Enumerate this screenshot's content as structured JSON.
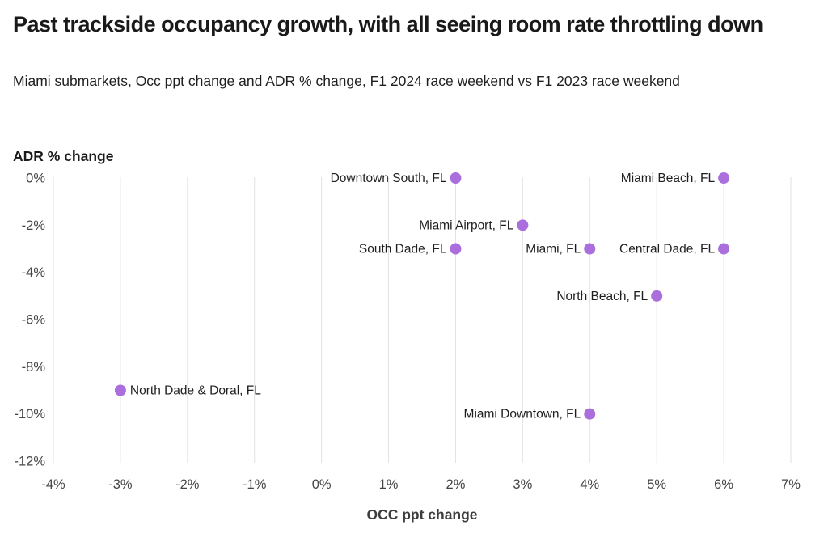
{
  "header": {
    "title": "Past trackside occupancy growth, with all seeing room rate throttling down",
    "subtitle": "Miami submarkets, Occ ppt change and ADR % change, F1 2024 race weekend vs F1 2023 race weekend"
  },
  "chart_data": {
    "type": "scatter",
    "title": "Past trackside occupancy growth, with all seeing room rate throttling down",
    "subtitle": "Miami submarkets, Occ ppt change and ADR % change, F1 2024 race weekend vs F1 2023 race weekend",
    "xlabel": "OCC ppt change",
    "ylabel": "ADR % change",
    "xlim": [
      -4,
      7
    ],
    "ylim": [
      -12,
      0
    ],
    "x_tick_values": [
      -4,
      -3,
      -2,
      -1,
      0,
      1,
      2,
      3,
      4,
      5,
      6,
      7
    ],
    "x_tick_labels": [
      "-4%",
      "-3%",
      "-2%",
      "-1%",
      "0%",
      "1%",
      "2%",
      "3%",
      "4%",
      "5%",
      "6%",
      "7%"
    ],
    "y_tick_values": [
      0,
      -2,
      -4,
      -6,
      -8,
      -10,
      -12
    ],
    "y_tick_labels": [
      "0%",
      "-2%",
      "-4%",
      "-6%",
      "-8%",
      "-10%",
      "-12%"
    ],
    "grid": "vertical-only",
    "legend": "none",
    "points": [
      {
        "label": "Downtown South, FL",
        "x": 2,
        "y": 0,
        "label_side": "left"
      },
      {
        "label": "Miami Beach, FL",
        "x": 6,
        "y": 0,
        "label_side": "left"
      },
      {
        "label": "Miami Airport, FL",
        "x": 3,
        "y": -2,
        "label_side": "left"
      },
      {
        "label": "South Dade, FL",
        "x": 2,
        "y": -3,
        "label_side": "left"
      },
      {
        "label": "Miami, FL",
        "x": 4,
        "y": -3,
        "label_side": "left"
      },
      {
        "label": "Central Dade, FL",
        "x": 6,
        "y": -3,
        "label_side": "left"
      },
      {
        "label": "North Beach, FL",
        "x": 5,
        "y": -5,
        "label_side": "left"
      },
      {
        "label": "North Dade & Doral, FL",
        "x": -3,
        "y": -9,
        "label_side": "right"
      },
      {
        "label": "Miami Downtown, FL",
        "x": 4,
        "y": -10,
        "label_side": "left"
      }
    ],
    "colors": {
      "point": "#ab6fdd",
      "grid": "#e2e2e2",
      "title_text": "#1a1a1a",
      "tick_text": "#454545",
      "point_label_text": "#1f1f1f"
    }
  }
}
